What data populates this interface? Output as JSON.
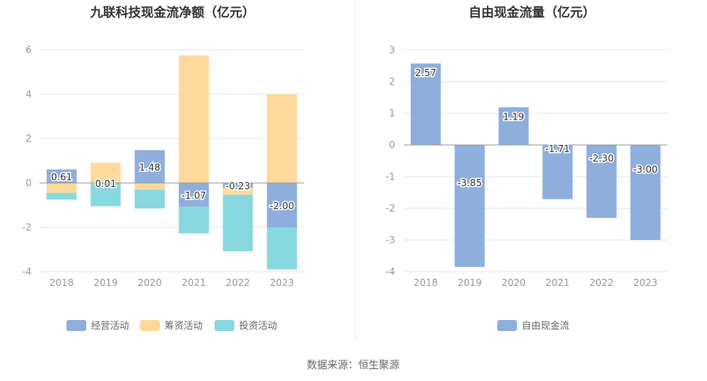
{
  "source_label": "数据来源：恒生聚源",
  "colors": {
    "operating": "#8eaedc",
    "financing": "#ffd99c",
    "investing": "#88d8df",
    "fcf": "#8eaedc",
    "grid": "#e6e6e6",
    "axis": "#999999",
    "divider": "#eeeeee"
  },
  "chart_data": [
    {
      "type": "bar",
      "stacked": true,
      "title": "九联科技现金流净额（亿元）",
      "categories": [
        "2018",
        "2019",
        "2020",
        "2021",
        "2022",
        "2023"
      ],
      "ylim": [
        -4,
        6
      ],
      "yticks": [
        6,
        4,
        2,
        0,
        -2,
        -4
      ],
      "series": [
        {
          "name": "经营活动",
          "key": "operating",
          "values": [
            0.61,
            0.01,
            1.48,
            -1.07,
            -0.23,
            -2.0
          ],
          "labels": [
            "0.61",
            "0.01",
            "1.48",
            "-1.07",
            "-0.23",
            "-2.00"
          ]
        },
        {
          "name": "筹资活动",
          "key": "financing",
          "values": [
            -0.45,
            0.9,
            -0.3,
            5.75,
            -0.3,
            4.0
          ]
        },
        {
          "name": "投资活动",
          "key": "investing",
          "values": [
            -0.3,
            -1.05,
            -0.85,
            -1.2,
            -2.55,
            -1.9
          ]
        }
      ]
    },
    {
      "type": "bar",
      "title": "自由现金流量（亿元）",
      "categories": [
        "2018",
        "2019",
        "2020",
        "2021",
        "2022",
        "2023"
      ],
      "ylim": [
        -4,
        3
      ],
      "yticks": [
        3,
        2,
        1,
        0,
        -1,
        -2,
        -3,
        -4
      ],
      "series": [
        {
          "name": "自由现金流",
          "key": "fcf",
          "values": [
            2.57,
            -3.85,
            1.19,
            -1.71,
            -2.3,
            -3.0
          ],
          "labels": [
            "2.57",
            "-3.85",
            "1.19",
            "-1.71",
            "-2.30",
            "-3.00"
          ]
        }
      ]
    }
  ]
}
